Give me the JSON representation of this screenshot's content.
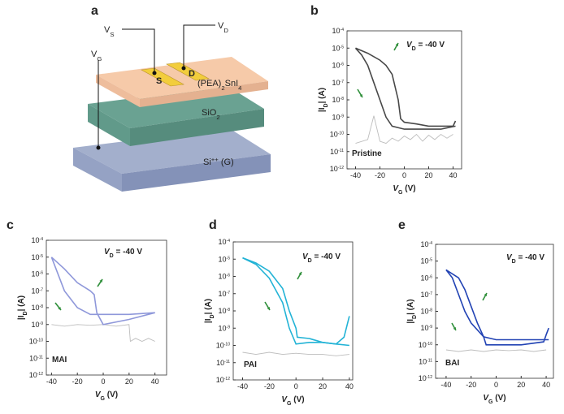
{
  "diagram": {
    "panel_label": "a",
    "vs": [
      {
        "t": "V",
        "s": ""
      },
      {
        "t": "S",
        "s": "sub"
      }
    ],
    "vd": [
      {
        "t": "V",
        "s": ""
      },
      {
        "t": "D",
        "s": "sub"
      }
    ],
    "vg": [
      {
        "t": "V",
        "s": ""
      },
      {
        "t": "G",
        "s": "sub"
      }
    ],
    "source": "S",
    "drain": "D",
    "semiconductor": [
      {
        "t": "(PEA)",
        "s": ""
      },
      {
        "t": "2",
        "s": "sub"
      },
      {
        "t": "SnI",
        "s": ""
      },
      {
        "t": "4",
        "s": "sub"
      }
    ],
    "dielectric": [
      {
        "t": "SiO",
        "s": ""
      },
      {
        "t": "2",
        "s": "sub"
      }
    ],
    "gate": [
      {
        "t": "Si",
        "s": ""
      },
      {
        "t": "++",
        "s": "sup"
      },
      {
        "t": " (G)",
        "s": ""
      }
    ]
  },
  "chart_data": [
    {
      "type": "line",
      "panel_label": "b",
      "sample": "Pristine",
      "log_scale": true,
      "annotation": [
        {
          "t": "V",
          "s": "i"
        },
        {
          "t": "D",
          "s": "sub"
        },
        {
          "t": " = -40 V",
          "s": ""
        }
      ],
      "xlabel": [
        {
          "t": "V",
          "s": "i"
        },
        {
          "t": "G",
          "s": "sub"
        },
        {
          "t": " (V)",
          "s": ""
        }
      ],
      "ylabel": [
        {
          "t": "|I",
          "s": ""
        },
        {
          "t": "D",
          "s": "sub"
        },
        {
          "t": "| (A)",
          "s": ""
        }
      ],
      "xlim": [
        -47,
        47
      ],
      "ylim": [
        1e-12,
        0.0001
      ],
      "xticks": [
        -40,
        -20,
        0,
        20,
        40
      ],
      "yticks": [
        {
          "value": 0.0001,
          "label": "10",
          "exponent": "-4"
        },
        {
          "value": 1e-05,
          "label": "10",
          "exponent": "-5"
        },
        {
          "value": 1e-06,
          "label": "10",
          "exponent": "-6"
        },
        {
          "value": 1e-07,
          "label": "10",
          "exponent": "-7"
        },
        {
          "value": 1e-08,
          "label": "10",
          "exponent": "-8"
        },
        {
          "value": 1e-09,
          "label": "10",
          "exponent": "-9"
        },
        {
          "value": 1e-10,
          "label": "10",
          "exponent": "-10"
        },
        {
          "value": 1e-11,
          "label": "10",
          "exponent": "-11"
        },
        {
          "value": 1e-12,
          "label": "10",
          "exponent": "-12"
        }
      ],
      "series": [
        {
          "color": "#484848",
          "x": [
            -40,
            -30,
            -20,
            -15,
            -10,
            -5,
            -3,
            0,
            10,
            20,
            30,
            40,
            42
          ],
          "values": [
            1e-05,
            5e-06,
            2e-06,
            1e-06,
            3e-07,
            1e-08,
            8e-10,
            5e-10,
            4e-10,
            3e-10,
            3e-10,
            3e-10,
            6e-10
          ]
        },
        {
          "color": "#484848",
          "x": [
            42,
            30,
            20,
            10,
            0,
            -10,
            -15,
            -20,
            -25,
            -30,
            -35,
            -40
          ],
          "values": [
            3e-10,
            2e-10,
            2e-10,
            2e-10,
            2e-10,
            3e-10,
            1e-09,
            1e-08,
            1e-07,
            1e-06,
            4e-06,
            1e-05
          ]
        },
        {
          "color": "#bdbdbd",
          "x": [
            -40,
            -30,
            -25,
            -20,
            -15,
            -10,
            -5,
            0,
            5,
            10,
            15,
            20,
            25,
            30,
            35,
            40
          ],
          "values": [
            3e-11,
            5e-11,
            1.2e-09,
            4e-11,
            3e-11,
            6e-11,
            4e-11,
            8e-11,
            5e-11,
            1e-10,
            4e-11,
            9e-11,
            5e-11,
            1e-10,
            6e-11,
            1e-10
          ]
        }
      ]
    },
    {
      "type": "line",
      "panel_label": "c",
      "sample": "MAI",
      "log_scale": true,
      "annotation": [
        {
          "t": "V",
          "s": "i"
        },
        {
          "t": "D",
          "s": "sub"
        },
        {
          "t": " = -40 V",
          "s": ""
        }
      ],
      "xlabel": [
        {
          "t": "V",
          "s": "i"
        },
        {
          "t": "G",
          "s": "sub"
        },
        {
          "t": " (V)",
          "s": ""
        }
      ],
      "ylabel": [
        {
          "t": "|I",
          "s": ""
        },
        {
          "t": "D",
          "s": "sub"
        },
        {
          "t": "| (A)",
          "s": ""
        }
      ],
      "xlim": [
        -44,
        49
      ],
      "ylim": [
        1e-12,
        0.0001
      ],
      "xticks": [
        -40,
        -20,
        0,
        20,
        40
      ],
      "yticks": [
        {
          "value": 0.0001,
          "label": "10",
          "exponent": "-4"
        },
        {
          "value": 1e-05,
          "label": "10",
          "exponent": "-5"
        },
        {
          "value": 1e-06,
          "label": "10",
          "exponent": "-6"
        },
        {
          "value": 1e-07,
          "label": "10",
          "exponent": "-7"
        },
        {
          "value": 1e-08,
          "label": "10",
          "exponent": "-8"
        },
        {
          "value": 1e-09,
          "label": "10",
          "exponent": "-9"
        },
        {
          "value": 1e-10,
          "label": "10",
          "exponent": "-10"
        },
        {
          "value": 1e-11,
          "label": "10",
          "exponent": "-11"
        },
        {
          "value": 1e-12,
          "label": "10",
          "exponent": "-12"
        }
      ],
      "series": [
        {
          "color": "#8f98da",
          "x": [
            -40,
            -30,
            -20,
            -10,
            -7,
            -5,
            0,
            20,
            40
          ],
          "values": [
            1e-05,
            2e-06,
            3e-07,
            1e-07,
            6e-08,
            5e-09,
            1e-09,
            2e-09,
            5e-09
          ]
        },
        {
          "color": "#8f98da",
          "x": [
            40,
            20,
            0,
            -10,
            -20,
            -30,
            -40
          ],
          "values": [
            5e-09,
            4e-09,
            4e-09,
            4e-09,
            1e-08,
            1e-07,
            1e-05
          ]
        },
        {
          "color": "#bdbdbd",
          "x": [
            -40,
            -30,
            -20,
            -10,
            0,
            10,
            20,
            21,
            25,
            30,
            35,
            40
          ],
          "values": [
            1e-09,
            8e-10,
            1e-09,
            9e-10,
            1e-09,
            8e-10,
            1e-09,
            1e-10,
            1.5e-10,
            1e-10,
            1.5e-10,
            1e-10
          ]
        }
      ]
    },
    {
      "type": "line",
      "panel_label": "d",
      "sample": "PAI",
      "log_scale": true,
      "annotation": [
        {
          "t": "V",
          "s": "i"
        },
        {
          "t": "D",
          "s": "sub"
        },
        {
          "t": " = -40 V",
          "s": ""
        }
      ],
      "xlabel": [
        {
          "t": "V",
          "s": "i"
        },
        {
          "t": "G",
          "s": "sub"
        },
        {
          "t": " (V)",
          "s": ""
        }
      ],
      "ylabel": [
        {
          "t": "|I",
          "s": ""
        },
        {
          "t": "D",
          "s": "sub"
        },
        {
          "t": "| (A)",
          "s": ""
        }
      ],
      "xlim": [
        -47,
        42.5
      ],
      "ylim": [
        1e-12,
        0.0001
      ],
      "xticks": [
        -40,
        -20,
        0,
        20,
        40
      ],
      "yticks": [
        {
          "value": 0.0001,
          "label": "10",
          "exponent": "-4"
        },
        {
          "value": 1e-05,
          "label": "10",
          "exponent": "-5"
        },
        {
          "value": 1e-06,
          "label": "10",
          "exponent": "-6"
        },
        {
          "value": 1e-07,
          "label": "10",
          "exponent": "-7"
        },
        {
          "value": 1e-08,
          "label": "10",
          "exponent": "-8"
        },
        {
          "value": 1e-09,
          "label": "10",
          "exponent": "-9"
        },
        {
          "value": 1e-10,
          "label": "10",
          "exponent": "-10"
        },
        {
          "value": 1e-11,
          "label": "10",
          "exponent": "-11"
        },
        {
          "value": 1e-12,
          "label": "10",
          "exponent": "-12"
        }
      ],
      "series": [
        {
          "color": "#22b3d6",
          "x": [
            -40,
            -30,
            -20,
            -10,
            -5,
            0,
            1,
            10,
            20,
            30,
            36,
            40
          ],
          "values": [
            1.2e-05,
            6e-06,
            2e-06,
            2e-07,
            1e-08,
            1e-09,
            3e-10,
            2.5e-10,
            1.5e-10,
            1.2e-10,
            3e-10,
            5e-09
          ]
        },
        {
          "color": "#22b3d6",
          "x": [
            40,
            30,
            20,
            10,
            0,
            -5,
            -10,
            -20,
            -30,
            -40
          ],
          "values": [
            1e-10,
            1.2e-10,
            1.5e-10,
            1.5e-10,
            1.2e-10,
            1e-09,
            3e-08,
            8e-07,
            5e-06,
            1.2e-05
          ]
        },
        {
          "color": "#bdbdbd",
          "x": [
            -40,
            -30,
            -20,
            -10,
            0,
            10,
            20,
            30,
            40
          ],
          "values": [
            4e-11,
            3e-11,
            4e-11,
            3e-11,
            3.5e-11,
            3e-11,
            3e-11,
            2.5e-11,
            3e-11
          ]
        }
      ]
    },
    {
      "type": "line",
      "panel_label": "e",
      "sample": "BAI",
      "log_scale": true,
      "annotation": [
        {
          "t": "V",
          "s": "i"
        },
        {
          "t": "D",
          "s": "sub"
        },
        {
          "t": " = -40 V",
          "s": ""
        }
      ],
      "xlabel": [
        {
          "t": "V",
          "s": "i"
        },
        {
          "t": "G",
          "s": "sub"
        },
        {
          "t": " (V)",
          "s": ""
        }
      ],
      "ylabel": [
        {
          "t": "|I",
          "s": ""
        },
        {
          "t": "D",
          "s": "sub"
        },
        {
          "t": "| (A)",
          "s": ""
        }
      ],
      "xlim": [
        -48.4,
        45.8
      ],
      "ylim": [
        1e-12,
        0.0001
      ],
      "xticks": [
        -40,
        -20,
        0,
        20,
        40
      ],
      "yticks": [
        {
          "value": 0.0001,
          "label": "10",
          "exponent": "-4"
        },
        {
          "value": 1e-05,
          "label": "10",
          "exponent": "-5"
        },
        {
          "value": 1e-06,
          "label": "10",
          "exponent": "-6"
        },
        {
          "value": 1e-07,
          "label": "10",
          "exponent": "-7"
        },
        {
          "value": 1e-08,
          "label": "10",
          "exponent": "-8"
        },
        {
          "value": 1e-09,
          "label": "10",
          "exponent": "-9"
        },
        {
          "value": 1e-10,
          "label": "10",
          "exponent": "-10"
        },
        {
          "value": 1e-11,
          "label": "10",
          "exponent": "-11"
        },
        {
          "value": 1e-12,
          "label": "10",
          "exponent": "-12"
        }
      ],
      "series": [
        {
          "color": "#2243b4",
          "x": [
            -40,
            -30,
            -25,
            -20,
            -15,
            -10,
            -8,
            0,
            20,
            38,
            40,
            42
          ],
          "values": [
            3e-06,
            1e-06,
            2e-07,
            2e-08,
            2e-09,
            3e-10,
            1e-10,
            1e-10,
            1e-10,
            1.5e-10,
            4e-10,
            1e-09
          ]
        },
        {
          "color": "#2243b4",
          "x": [
            42,
            30,
            20,
            0,
            -10,
            -20,
            -25,
            -30,
            -35,
            -40
          ],
          "values": [
            2e-10,
            2e-10,
            2e-10,
            2e-10,
            3e-10,
            2e-09,
            1e-08,
            1e-07,
            1e-06,
            3e-06
          ]
        },
        {
          "color": "#bdbdbd",
          "x": [
            -40,
            -30,
            -20,
            -10,
            0,
            10,
            20,
            30,
            40
          ],
          "values": [
            5e-11,
            4e-11,
            5e-11,
            4e-11,
            5e-11,
            4.5e-11,
            5e-11,
            4e-11,
            5e-11
          ]
        }
      ]
    }
  ]
}
